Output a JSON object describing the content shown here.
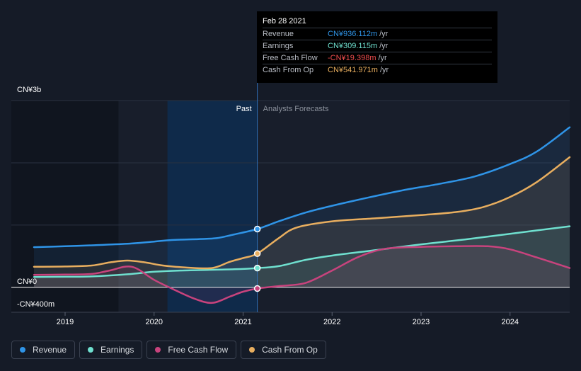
{
  "tooltip": {
    "date": "Feb 28 2021",
    "rows": [
      {
        "label": "Revenue",
        "value": "CN¥936.112m",
        "unit": "/yr",
        "color": "#2f94e7"
      },
      {
        "label": "Earnings",
        "value": "CN¥309.115m",
        "unit": "/yr",
        "color": "#6fe0cf"
      },
      {
        "label": "Free Cash Flow",
        "value": "-CN¥19.398m",
        "unit": "/yr",
        "color": "#ef4d4d"
      },
      {
        "label": "Cash From Op",
        "value": "CN¥541.971m",
        "unit": "/yr",
        "color": "#e8ae5f"
      }
    ]
  },
  "legend": [
    {
      "label": "Revenue",
      "color": "#2f94e7"
    },
    {
      "label": "Earnings",
      "color": "#6fe0cf"
    },
    {
      "label": "Free Cash Flow",
      "color": "#c8437d"
    },
    {
      "label": "Cash From Op",
      "color": "#e8ae5f"
    }
  ],
  "chart_data": {
    "type": "line",
    "title": "",
    "xlabel": "",
    "ylabel": "",
    "ylim": [
      -400,
      3000
    ],
    "xlim": [
      2018.65,
      2024.67
    ],
    "y_tick_labels": [
      "CN¥3b",
      "CN¥0",
      "-CN¥400m"
    ],
    "x_ticks": [
      2019,
      2020,
      2021,
      2022,
      2023,
      2024
    ],
    "x_tick_labels": [
      "2019",
      "2020",
      "2021",
      "2022",
      "2023",
      "2024"
    ],
    "past_label": "Past",
    "forecast_label": "Analysts Forecasts",
    "divider_x": 2021.16,
    "series": [
      {
        "name": "Revenue",
        "color": "#2f94e7",
        "x": [
          2018.65,
          2019.0,
          2019.3,
          2019.7,
          2020.0,
          2020.2,
          2020.5,
          2020.7,
          2020.9,
          2021.16,
          2021.4,
          2021.7,
          2022.0,
          2022.4,
          2022.8,
          2023.2,
          2023.6,
          2024.0,
          2024.3,
          2024.67
        ],
        "y": [
          645,
          660,
          675,
          700,
          735,
          760,
          775,
          790,
          850,
          936,
          1060,
          1200,
          1310,
          1440,
          1560,
          1660,
          1780,
          1980,
          2180,
          2570
        ]
      },
      {
        "name": "Earnings",
        "color": "#6fe0cf",
        "x": [
          2018.65,
          2019.0,
          2019.3,
          2019.7,
          2020.0,
          2020.3,
          2020.6,
          2020.9,
          2021.16,
          2021.4,
          2021.7,
          2022.0,
          2022.5,
          2023.0,
          2023.5,
          2024.0,
          2024.67
        ],
        "y": [
          165,
          170,
          175,
          210,
          250,
          270,
          280,
          290,
          309,
          340,
          440,
          510,
          600,
          690,
          770,
          860,
          980
        ]
      },
      {
        "name": "Free Cash Flow",
        "color": "#c8437d",
        "x": [
          2018.65,
          2019.0,
          2019.3,
          2019.5,
          2019.75,
          2020.0,
          2020.2,
          2020.45,
          2020.65,
          2020.85,
          2021.0,
          2021.16,
          2021.4,
          2021.7,
          2022.0,
          2022.3,
          2022.6,
          2023.0,
          2023.4,
          2023.75,
          2024.0,
          2024.3,
          2024.67
        ],
        "y": [
          200,
          205,
          215,
          270,
          330,
          120,
          -20,
          -180,
          -250,
          -150,
          -70,
          -19,
          20,
          70,
          270,
          490,
          620,
          650,
          660,
          660,
          610,
          480,
          310
        ]
      },
      {
        "name": "Cash From Op",
        "color": "#e8ae5f",
        "x": [
          2018.65,
          2019.0,
          2019.3,
          2019.5,
          2019.7,
          2019.9,
          2020.1,
          2020.35,
          2020.65,
          2020.85,
          2021.0,
          2021.16,
          2021.4,
          2021.6,
          2022.0,
          2022.5,
          2023.0,
          2023.4,
          2023.7,
          2024.0,
          2024.3,
          2024.67
        ],
        "y": [
          330,
          335,
          350,
          400,
          430,
          400,
          350,
          320,
          310,
          410,
          470,
          542,
          790,
          960,
          1060,
          1110,
          1160,
          1210,
          1290,
          1450,
          1690,
          2090
        ]
      }
    ]
  }
}
